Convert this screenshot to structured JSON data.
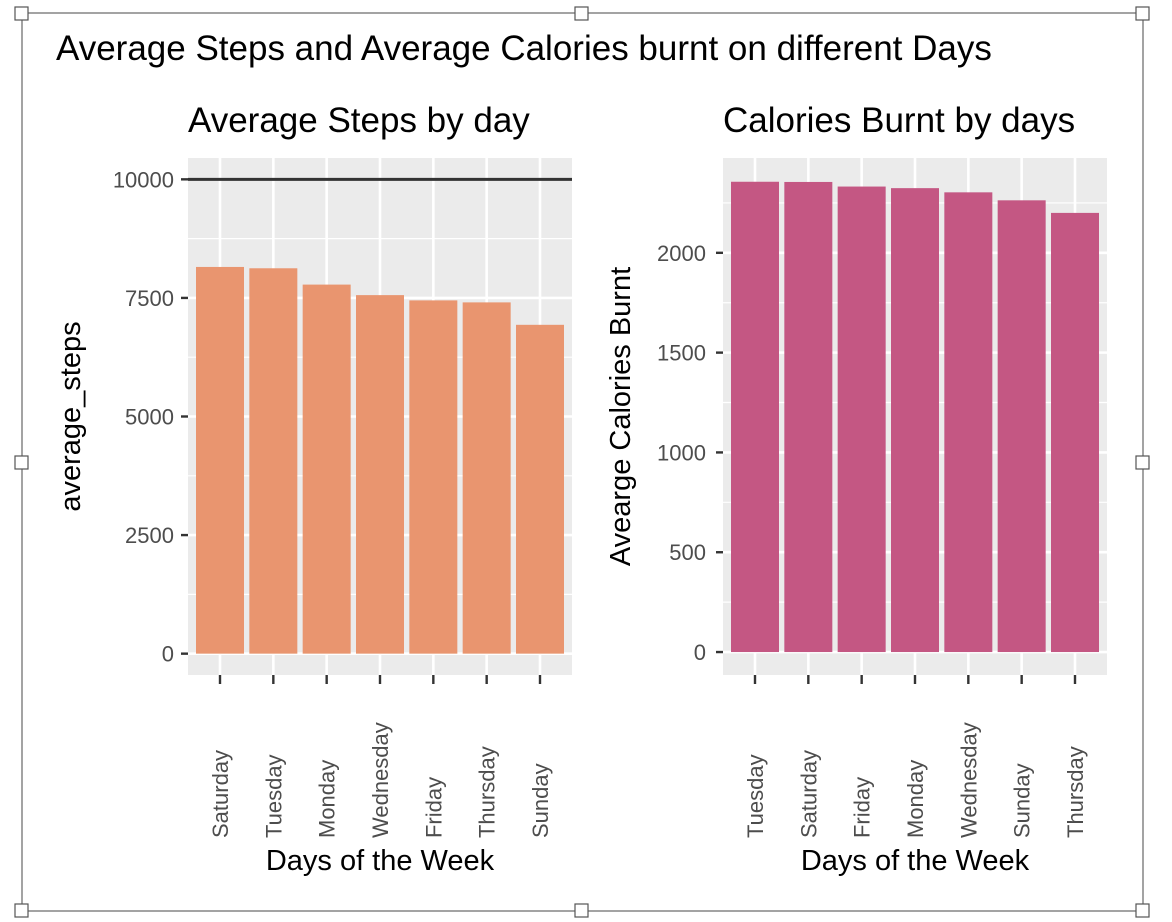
{
  "main_title": "Average Steps and Average Calories burnt on different Days",
  "chart_data": [
    {
      "type": "bar",
      "title": "Average Steps by day",
      "xlabel": "Days of the Week",
      "ylabel": "average_steps",
      "categories": [
        "Saturday",
        "Tuesday",
        "Monday",
        "Wednesday",
        "Friday",
        "Thursday",
        "Sunday"
      ],
      "values": [
        8153,
        8125,
        7781,
        7559,
        7448,
        7406,
        6933
      ],
      "ylim": [
        -450,
        10450
      ],
      "yticks": [
        0,
        2500,
        5000,
        7500,
        10000
      ],
      "ytick_labels": [
        "0",
        "2500",
        "5000",
        "7500",
        "10000"
      ],
      "reference_line": 10000,
      "bar_color": "#E9956F",
      "reference_line_color": "#333333",
      "panel_color": "#EBEBEB",
      "grid": true
    },
    {
      "type": "bar",
      "title": "Calories Burnt by days",
      "xlabel": "Days of the Week",
      "ylabel": "Avearge Calories Burnt",
      "categories": [
        "Tuesday",
        "Saturday",
        "Friday",
        "Monday",
        "Wednesday",
        "Sunday",
        "Thursday"
      ],
      "values": [
        2356,
        2355,
        2332,
        2324,
        2303,
        2263,
        2200
      ],
      "ylim": [
        -115,
        2475
      ],
      "yticks": [
        0,
        500,
        1000,
        1500,
        2000
      ],
      "ytick_labels": [
        "0",
        "500",
        "1000",
        "1500",
        "2000"
      ],
      "bar_color": "#C45783",
      "panel_color": "#EBEBEB",
      "grid": true
    }
  ]
}
